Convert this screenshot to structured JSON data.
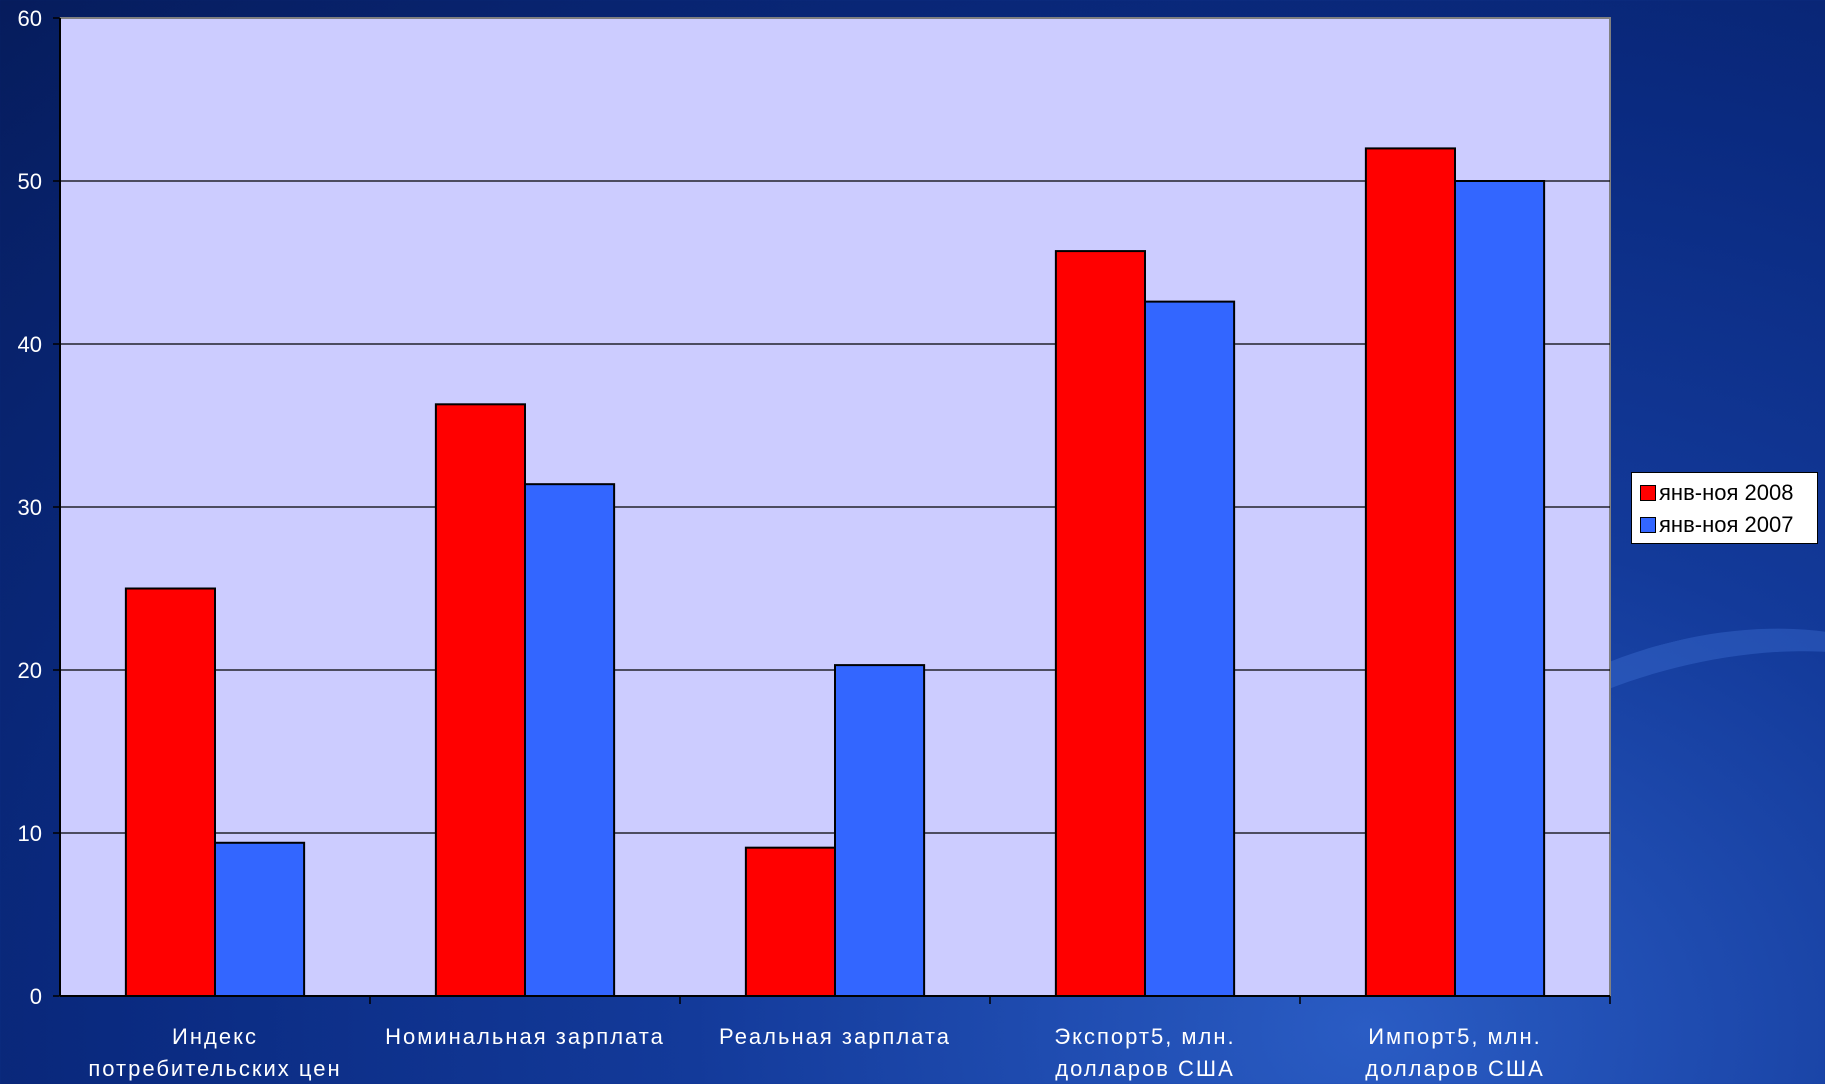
{
  "chart_data": {
    "type": "bar",
    "categories": [
      [
        "Индекс",
        "потребительских цен"
      ],
      [
        "Номинальная зарплата"
      ],
      [
        "Реальная зарплата"
      ],
      [
        "Экспорт5, млн.",
        "долларов США"
      ],
      [
        "Импорт5, млн.",
        "долларов США"
      ]
    ],
    "series": [
      {
        "name": "янв-ноя 2008",
        "color": "#ff0000",
        "values": [
          25,
          36.3,
          9.1,
          45.7,
          52
        ]
      },
      {
        "name": "янв-ноя 2007",
        "color": "#3366ff",
        "values": [
          9.4,
          31.4,
          20.3,
          42.6,
          50
        ]
      }
    ],
    "ylim": [
      0,
      60
    ],
    "yticks": [
      0,
      10,
      20,
      30,
      40,
      50,
      60
    ],
    "grid": true,
    "legend_position": "right",
    "plot_background": "#ccccff",
    "title": "",
    "xlabel": "",
    "ylabel": ""
  }
}
